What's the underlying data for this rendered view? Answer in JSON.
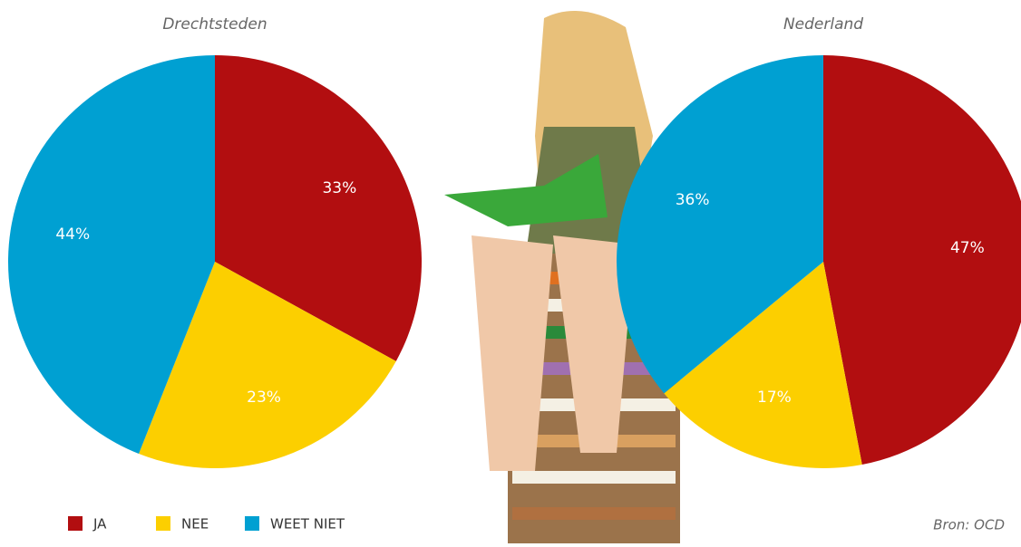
{
  "chart_data": [
    {
      "type": "pie",
      "title": "Drechtsteden",
      "categories": [
        "JA",
        "NEE",
        "WEET NIET"
      ],
      "values": [
        33,
        23,
        44
      ],
      "value_labels": [
        "33%",
        "23%",
        "44%"
      ],
      "colors": [
        "#b20e10",
        "#fccf00",
        "#00a0d2"
      ]
    },
    {
      "type": "pie",
      "title": "Nederland",
      "categories": [
        "JA",
        "NEE",
        "WEET NIET"
      ],
      "values": [
        47,
        17,
        36
      ],
      "value_labels": [
        "47%",
        "17%",
        "36%"
      ],
      "colors": [
        "#b20e10",
        "#fccf00",
        "#00a0d2"
      ]
    }
  ],
  "source": "Bron: OCD"
}
